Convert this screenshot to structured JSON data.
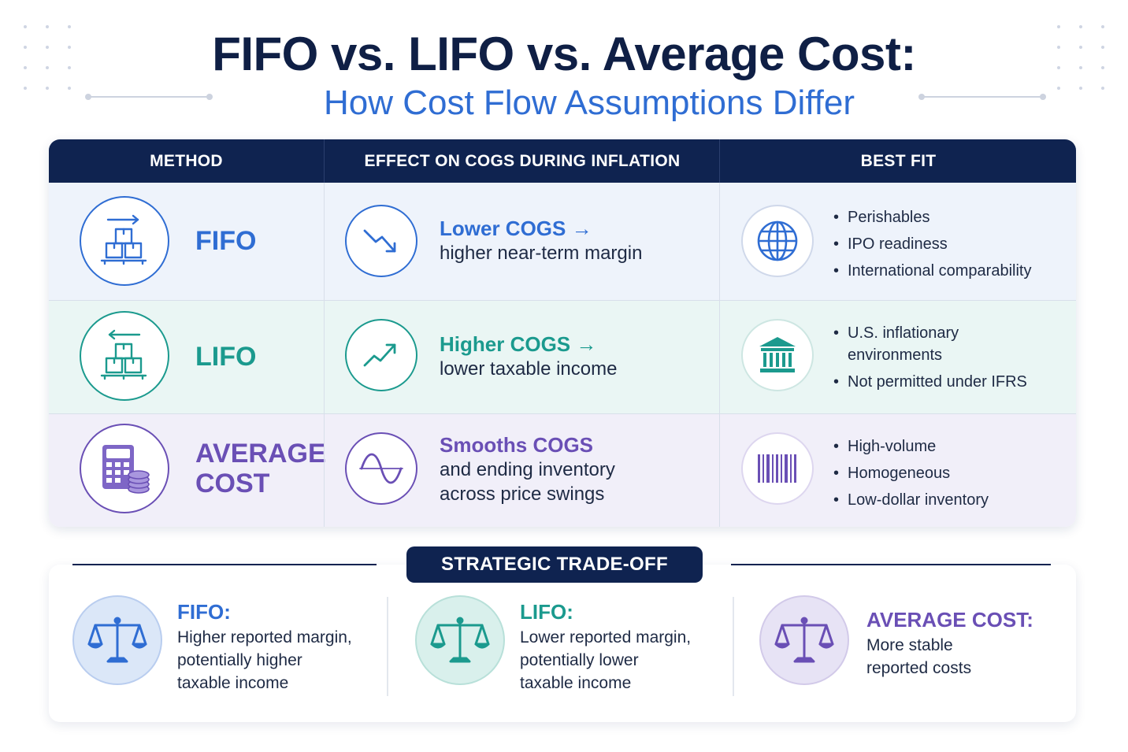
{
  "header": {
    "title": "FIFO vs. LIFO vs. Average Cost:",
    "subtitle": "How Cost Flow Assumptions Differ"
  },
  "table": {
    "columns": [
      "METHOD",
      "EFFECT ON COGS DURING INFLATION",
      "BEST FIT"
    ],
    "rows": [
      {
        "method": "FIFO",
        "method_icon": "boxes-arrow-right-icon",
        "effect_icon": "trend-down-icon",
        "effect_head": "Lower COGS →",
        "effect_sub": "higher near-term margin",
        "fit_icon": "globe-icon",
        "best_fit": [
          "Perishables",
          "IPO readiness",
          "International comparability"
        ],
        "color": "#2f6dd3"
      },
      {
        "method": "LIFO",
        "method_icon": "boxes-arrow-left-icon",
        "effect_icon": "trend-up-icon",
        "effect_head": "Higher COGS →",
        "effect_sub": "lower taxable income",
        "fit_icon": "bank-icon",
        "best_fit": [
          "U.S. inflationary environments",
          "Not permitted under IFRS"
        ],
        "color": "#1b9a8e"
      },
      {
        "method": "AVERAGE COST",
        "method_line1": "AVERAGE",
        "method_line2": "COST",
        "method_icon": "calculator-coins-icon",
        "effect_icon": "sine-wave-icon",
        "effect_head": "Smooths COGS",
        "effect_sub1": "and ending inventory",
        "effect_sub2": "across price swings",
        "fit_icon": "barcode-icon",
        "best_fit": [
          "High-volume",
          "Homogeneous",
          "Low-dollar inventory"
        ],
        "color": "#6a4fb5"
      }
    ]
  },
  "tradeoff": {
    "label": "STRATEGIC TRADE-OFF",
    "items": [
      {
        "head": "FIFO:",
        "body": "Higher reported margin,\npotentially higher\ntaxable income",
        "color": "#2f6dd3",
        "icon": "balance-scale-icon"
      },
      {
        "head": "LIFO:",
        "body": "Lower reported margin,\npotentially lower\ntaxable income",
        "color": "#1b9a8e",
        "icon": "balance-scale-icon"
      },
      {
        "head": "AVERAGE COST:",
        "body": "More stable\nreported costs",
        "color": "#6a4fb5",
        "icon": "balance-scale-icon"
      }
    ]
  }
}
